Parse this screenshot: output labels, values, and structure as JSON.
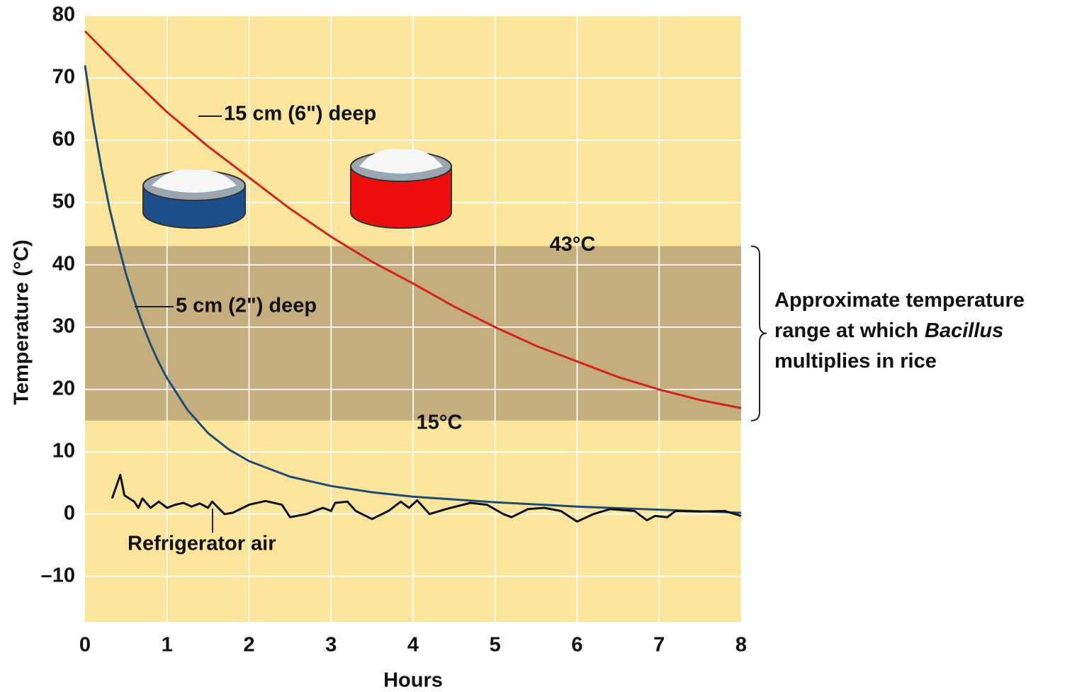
{
  "chart_data": {
    "type": "line",
    "x_label": "Hours",
    "y_label": "Temperature (°C)",
    "xlim": [
      0,
      8
    ],
    "xticks": [
      0,
      1,
      2,
      3,
      4,
      5,
      6,
      7,
      8
    ],
    "ylim": [
      -17.3,
      80
    ],
    "yticks": [
      {
        "value": -10,
        "label": "–10"
      },
      0,
      10,
      20,
      30,
      40,
      50,
      60,
      70,
      80
    ],
    "grid": true,
    "band": {
      "low": 15,
      "high": 43,
      "low_label": "15°C",
      "high_label": "43°C",
      "color": "#c4ae7e"
    },
    "annotation": [
      {
        "text": "Approximate temperature"
      },
      {
        "text": "range at which",
        "italic": "Bacillus"
      },
      {
        "text": "multiplies in rice"
      }
    ],
    "series": [
      {
        "name": "15 cm (6\") deep",
        "color": "#d3241c",
        "x": [
          0,
          0.5,
          1,
          1.5,
          2,
          2.5,
          3,
          3.5,
          4,
          4.5,
          5,
          5.5,
          6,
          6.5,
          7,
          7.5,
          8
        ],
        "values": [
          77.5,
          70.8,
          64.5,
          59,
          54,
          49,
          44.5,
          40.5,
          37,
          33.3,
          30,
          27,
          24.5,
          22,
          20,
          18.3,
          17
        ]
      },
      {
        "name": "5 cm (2\") deep",
        "color": "#1d4e72",
        "x": [
          0,
          0.1,
          0.2,
          0.3,
          0.4,
          0.5,
          0.6,
          0.7,
          0.8,
          0.9,
          1,
          1.25,
          1.5,
          1.75,
          2,
          2.5,
          3,
          3.5,
          4,
          5,
          6,
          7,
          8
        ],
        "values": [
          72,
          63,
          55.5,
          49,
          43.5,
          38.5,
          34.3,
          30.5,
          27.2,
          24.3,
          21.8,
          16.7,
          13,
          10.4,
          8.5,
          6,
          4.5,
          3.5,
          2.8,
          1.9,
          1.2,
          0.7,
          0.2
        ]
      },
      {
        "name": "Refrigerator air",
        "color": "#111111",
        "x": [
          0.33,
          0.43,
          0.48,
          0.6,
          0.65,
          0.7,
          0.8,
          0.9,
          1,
          1.1,
          1.2,
          1.3,
          1.4,
          1.5,
          1.55,
          1.7,
          1.8,
          2,
          2.2,
          2.4,
          2.5,
          2.7,
          2.9,
          3,
          3.05,
          3.2,
          3.3,
          3.5,
          3.7,
          3.85,
          3.95,
          4.05,
          4.2,
          4.4,
          4.7,
          4.9,
          5.1,
          5.2,
          5.4,
          5.6,
          5.8,
          6,
          6.2,
          6.4,
          6.7,
          6.85,
          6.95,
          7.1,
          7.2,
          7.5,
          7.8,
          8
        ],
        "values": [
          2.5,
          6.3,
          3,
          2,
          1,
          2.5,
          1,
          2,
          1,
          1.5,
          1.8,
          1.2,
          1.7,
          1,
          2,
          0,
          0.2,
          1.5,
          2.1,
          1.5,
          -0.5,
          0,
          1,
          0.5,
          1.8,
          2,
          0.5,
          -0.8,
          0.5,
          2,
          1,
          2.2,
          0,
          0.8,
          1.8,
          1.5,
          0,
          -0.5,
          0.8,
          1,
          0.5,
          -1.2,
          0,
          0.8,
          0.5,
          -1,
          -0.3,
          -0.5,
          0.5,
          0.4,
          0.5,
          -0.3
        ]
      }
    ]
  }
}
